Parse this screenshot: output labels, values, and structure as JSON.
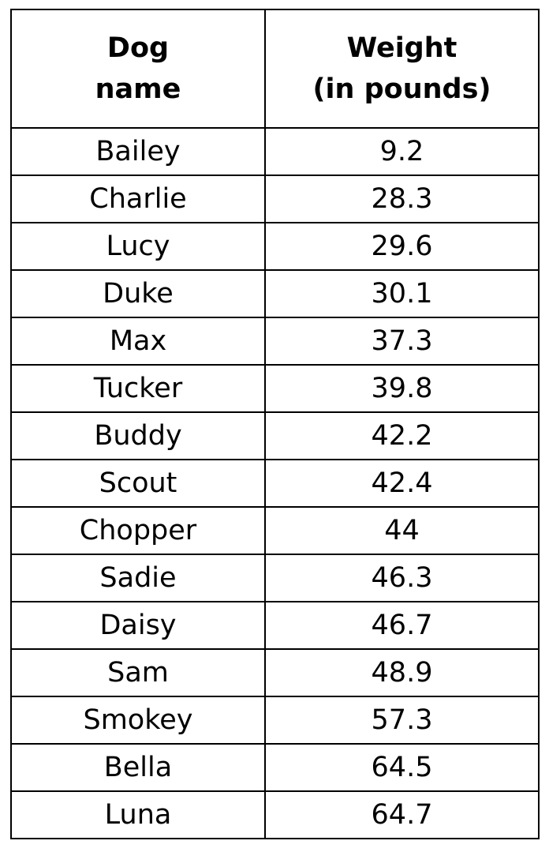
{
  "table": {
    "headers": {
      "dog_name": [
        "Dog",
        "name"
      ],
      "weight": [
        "Weight",
        "(in pounds)"
      ]
    },
    "rows": [
      {
        "name": "Bailey",
        "weight": "9.2"
      },
      {
        "name": "Charlie",
        "weight": "28.3"
      },
      {
        "name": "Lucy",
        "weight": "29.6"
      },
      {
        "name": "Duke",
        "weight": "30.1"
      },
      {
        "name": "Max",
        "weight": "37.3"
      },
      {
        "name": "Tucker",
        "weight": "39.8"
      },
      {
        "name": "Buddy",
        "weight": "42.2"
      },
      {
        "name": "Scout",
        "weight": "42.4"
      },
      {
        "name": "Chopper",
        "weight": "44"
      },
      {
        "name": "Sadie",
        "weight": "46.3"
      },
      {
        "name": "Daisy",
        "weight": "46.7"
      },
      {
        "name": "Sam",
        "weight": "48.9"
      },
      {
        "name": "Smokey",
        "weight": "57.3"
      },
      {
        "name": "Bella",
        "weight": "64.5"
      },
      {
        "name": "Luna",
        "weight": "64.7"
      }
    ]
  }
}
